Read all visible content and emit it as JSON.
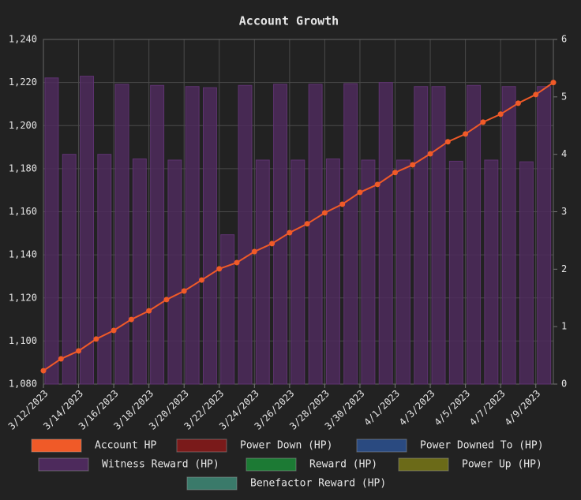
{
  "chart_data": {
    "type": "bar-line",
    "title": "Account Growth",
    "categories": [
      "3/12/2023",
      null,
      "3/14/2023",
      null,
      "3/16/2023",
      null,
      "3/18/2023",
      null,
      "3/20/2023",
      null,
      "3/22/2023",
      null,
      "3/24/2023",
      null,
      "3/26/2023",
      null,
      "3/28/2023",
      null,
      "3/30/2023",
      null,
      "4/1/2023",
      null,
      "4/3/2023",
      null,
      "4/5/2023",
      null,
      "4/7/2023",
      null,
      "4/9/2023",
      null
    ],
    "series": [
      {
        "name": "Account HP",
        "color": "#f05a28",
        "type": "line",
        "axis": "y",
        "values": [
          1086.2,
          1091.7,
          1095.4,
          1100.9,
          1104.9,
          1110,
          1114,
          1119.2,
          1123.2,
          1128.3,
          1133.5,
          1136.4,
          1141.5,
          1145.2,
          1150.3,
          1154.4,
          1159.5,
          1163.5,
          1169,
          1172.7,
          1178.2,
          1181.8,
          1186.9,
          1192.5,
          1196.1,
          1201.6,
          1205.3,
          1210.4,
          1214.4,
          1220
        ]
      },
      {
        "name": "Power Down (HP)",
        "color": "#7a1a1a"
      },
      {
        "name": "Power Downed To (HP)",
        "color": "#2a4a80"
      },
      {
        "name": "Witness Reward (HP)",
        "color": "#4d2a5c",
        "type": "bar",
        "axis": "y2",
        "values": [
          5.33,
          4.0,
          5.36,
          4.0,
          5.22,
          3.92,
          5.2,
          3.9,
          5.18,
          5.16,
          2.6,
          5.2,
          3.9,
          5.22,
          3.9,
          5.22,
          3.92,
          5.23,
          3.9,
          5.25,
          3.9,
          5.18,
          5.18,
          3.88,
          5.2,
          3.9,
          5.18,
          3.87,
          5.18,
          null
        ]
      },
      {
        "name": "Reward (HP)",
        "color": "#1c7a34"
      },
      {
        "name": "Power Up (HP)",
        "color": "#6b6a18"
      },
      {
        "name": "Benefactor Reward (HP)",
        "color": "#3a7a6a"
      }
    ],
    "ylim": [
      1080,
      1240
    ],
    "yticks": [
      {
        "value": 1080,
        "label": "1,080"
      },
      {
        "value": 1100,
        "label": "1,100"
      },
      {
        "value": 1120,
        "label": "1,120"
      },
      {
        "value": 1140,
        "label": "1,140"
      },
      {
        "value": 1160,
        "label": "1,160"
      },
      {
        "value": 1180,
        "label": "1,180"
      },
      {
        "value": 1200,
        "label": "1,200"
      },
      {
        "value": 1220,
        "label": "1,220"
      },
      {
        "value": 1240,
        "label": "1,240"
      }
    ],
    "y2lim": [
      0,
      6
    ],
    "y2ticks": [
      0,
      1,
      2,
      3,
      4,
      5,
      6
    ],
    "grid": true
  }
}
